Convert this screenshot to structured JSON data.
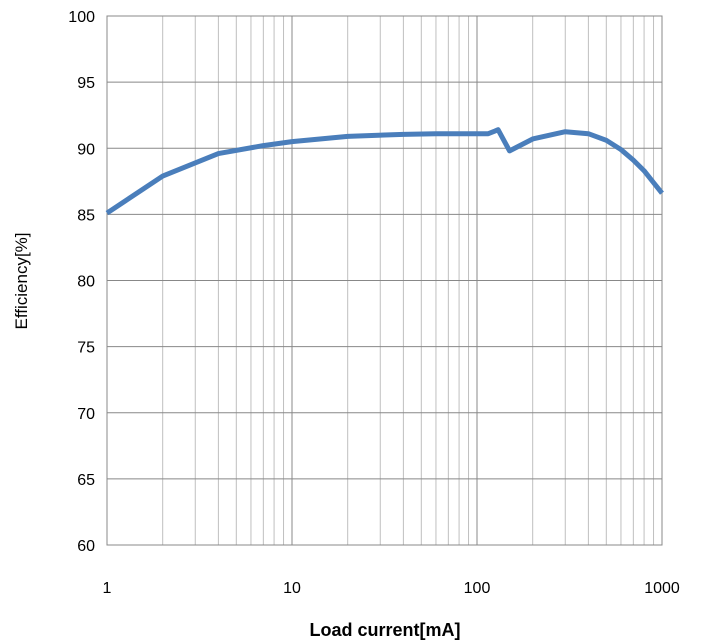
{
  "chart_data": {
    "type": "line",
    "title": "",
    "xlabel": "Load current[mA]",
    "ylabel": "Efficiency[%]",
    "xscale": "log",
    "xlim": [
      1,
      1000
    ],
    "ylim": [
      60,
      100
    ],
    "x_ticks": [
      "1",
      "10",
      "100",
      "1000"
    ],
    "y_ticks": [
      "60",
      "65",
      "70",
      "75",
      "80",
      "85",
      "90",
      "95",
      "100"
    ],
    "grid": true,
    "legend": "none",
    "series": [
      {
        "color": "#4a7ebb",
        "points": [
          [
            1,
            85.1
          ],
          [
            2,
            87.9
          ],
          [
            4,
            89.6
          ],
          [
            7,
            90.2
          ],
          [
            10,
            90.5
          ],
          [
            20,
            90.9
          ],
          [
            40,
            91.05
          ],
          [
            60,
            91.1
          ],
          [
            100,
            91.1
          ],
          [
            115,
            91.1
          ],
          [
            125,
            91.3
          ],
          [
            130,
            91.4
          ],
          [
            150,
            89.8
          ],
          [
            200,
            90.7
          ],
          [
            300,
            91.25
          ],
          [
            400,
            91.1
          ],
          [
            500,
            90.6
          ],
          [
            600,
            89.9
          ],
          [
            700,
            89.1
          ],
          [
            800,
            88.3
          ],
          [
            900,
            87.4
          ],
          [
            1000,
            86.6
          ]
        ]
      }
    ]
  }
}
